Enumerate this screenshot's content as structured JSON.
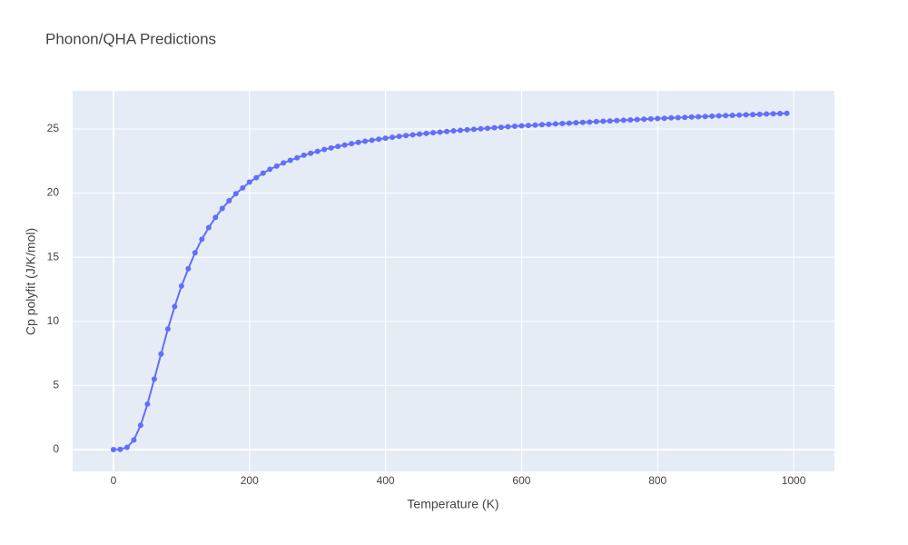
{
  "chart_data": {
    "type": "line",
    "title": "Phonon/QHA Predictions",
    "x_label": "Temperature (K)",
    "y_label": "Cp polyfit (J/K/mol)",
    "x": [
      0,
      10,
      20,
      30,
      40,
      50,
      60,
      70,
      80,
      90,
      100,
      110,
      120,
      130,
      140,
      150,
      160,
      170,
      180,
      190,
      200,
      210,
      220,
      230,
      240,
      250,
      260,
      270,
      280,
      290,
      300,
      310,
      320,
      330,
      340,
      350,
      360,
      370,
      380,
      390,
      400,
      410,
      420,
      430,
      440,
      450,
      460,
      470,
      480,
      490,
      500,
      510,
      520,
      530,
      540,
      550,
      560,
      570,
      580,
      590,
      600,
      610,
      620,
      630,
      640,
      650,
      660,
      670,
      680,
      690,
      700,
      710,
      720,
      730,
      740,
      750,
      760,
      770,
      780,
      790,
      800,
      810,
      820,
      830,
      840,
      850,
      860,
      870,
      880,
      890,
      900,
      910,
      920,
      930,
      940,
      950,
      960,
      970,
      980,
      990
    ],
    "series": [
      {
        "color": "#636efa",
        "values": [
          0,
          0.02,
          0.18,
          0.75,
          1.9,
          3.55,
          5.5,
          7.45,
          9.4,
          11.15,
          12.75,
          14.1,
          15.35,
          16.4,
          17.3,
          18.1,
          18.8,
          19.4,
          19.95,
          20.4,
          20.85,
          21.2,
          21.55,
          21.85,
          22.1,
          22.35,
          22.55,
          22.75,
          22.95,
          23.1,
          23.25,
          23.4,
          23.52,
          23.64,
          23.75,
          23.85,
          23.95,
          24.04,
          24.12,
          24.2,
          24.28,
          24.35,
          24.42,
          24.48,
          24.54,
          24.6,
          24.65,
          24.7,
          24.75,
          24.8,
          24.85,
          24.89,
          24.93,
          24.97,
          25.01,
          25.05,
          25.09,
          25.13,
          25.17,
          25.21,
          25.24,
          25.27,
          25.3,
          25.33,
          25.36,
          25.39,
          25.42,
          25.45,
          25.48,
          25.51,
          25.54,
          25.57,
          25.6,
          25.62,
          25.65,
          25.68,
          25.7,
          25.73,
          25.76,
          25.78,
          25.81,
          25.83,
          25.86,
          25.88,
          25.9,
          25.93,
          25.95,
          25.97,
          26.0,
          26.02,
          26.04,
          26.06,
          26.08,
          26.1,
          26.12,
          26.14,
          26.16,
          26.18,
          26.2,
          26.22
        ]
      }
    ],
    "xlim": [
      -60,
      1060
    ],
    "ylim": [
      -1.7,
      27.97
    ],
    "xticks": [
      0,
      200,
      400,
      600,
      800,
      1000
    ],
    "yticks": [
      0,
      5,
      10,
      15,
      20,
      25
    ],
    "grid": true
  }
}
